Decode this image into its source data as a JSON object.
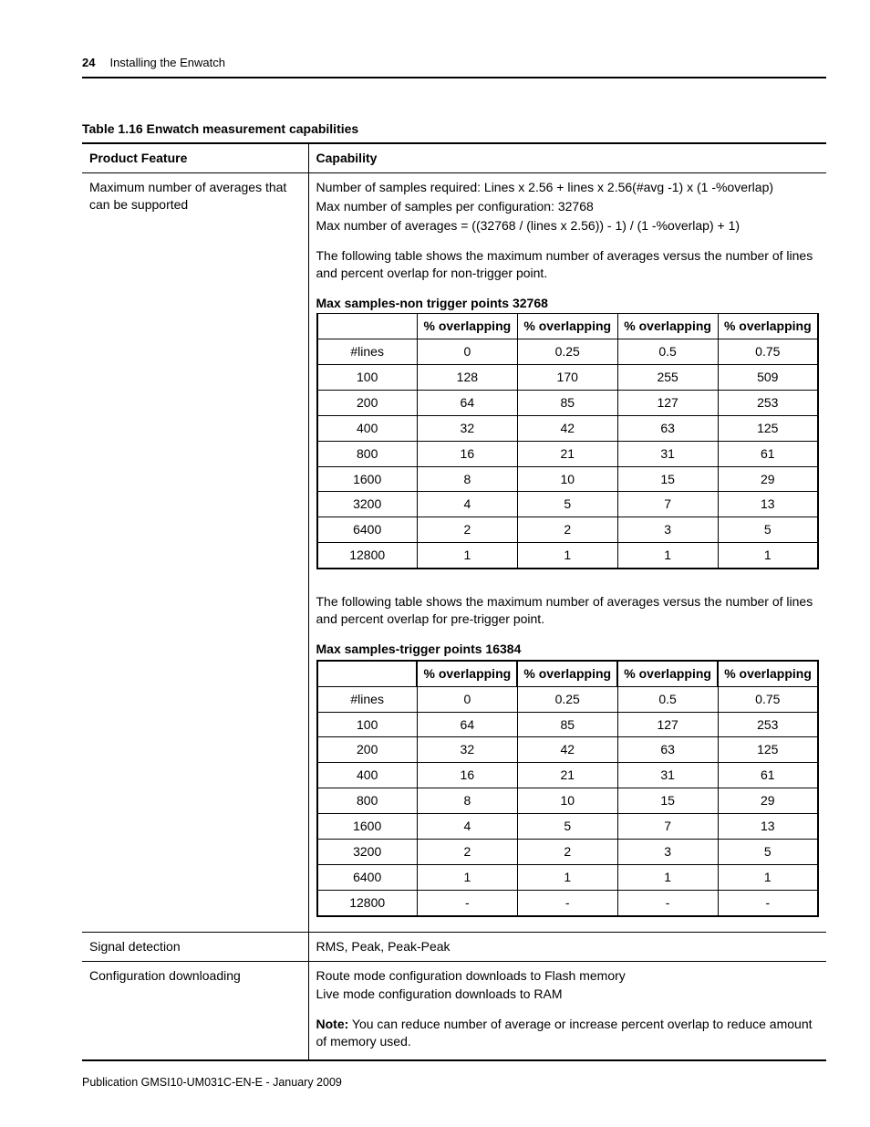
{
  "header": {
    "page_number": "24",
    "chapter": "Installing the Enwatch"
  },
  "table_caption": "Table 1.16 Enwatch measurement capabilities",
  "main_headers": {
    "col1": "Product Feature",
    "col2": "Capability"
  },
  "row1": {
    "feature": "Maximum number of averages that can be supported",
    "line1": "Number of samples required: Lines x 2.56 + lines x 2.56(#avg -1) x (1 -%overlap)",
    "line2": "Max number of samples per configuration: 32768",
    "line3": "Max number of averages = ((32768 / (lines x 2.56)) - 1) / (1 -%overlap) + 1)",
    "desc1": "The following table shows the maximum number of averages versus the number of lines and percent overlap for non-trigger point.",
    "sub1_caption": "Max samples-non trigger points 32768",
    "col_hdr_blank": "",
    "col_hdr": "% overlapping",
    "row_lbl": "#lines",
    "overlap_vals": [
      "0",
      "0.25",
      "0.5",
      "0.75"
    ],
    "sub1_rows": [
      [
        "100",
        "128",
        "170",
        "255",
        "509"
      ],
      [
        "200",
        "64",
        "85",
        "127",
        "253"
      ],
      [
        "400",
        "32",
        "42",
        "63",
        "125"
      ],
      [
        "800",
        "16",
        "21",
        "31",
        "61"
      ],
      [
        "1600",
        "8",
        "10",
        "15",
        "29"
      ],
      [
        "3200",
        "4",
        "5",
        "7",
        "13"
      ],
      [
        "6400",
        "2",
        "2",
        "3",
        "5"
      ],
      [
        "12800",
        "1",
        "1",
        "1",
        "1"
      ]
    ],
    "desc2": "The following table shows the maximum number of averages versus the number of lines and percent overlap for pre-trigger point.",
    "sub2_caption": "Max samples-trigger points  16384",
    "sub2_rows": [
      [
        "100",
        "64",
        "85",
        "127",
        "253"
      ],
      [
        "200",
        "32",
        "42",
        "63",
        "125"
      ],
      [
        "400",
        "16",
        "21",
        "31",
        "61"
      ],
      [
        "800",
        "8",
        "10",
        "15",
        "29"
      ],
      [
        "1600",
        "4",
        "5",
        "7",
        "13"
      ],
      [
        "3200",
        "2",
        "2",
        "3",
        "5"
      ],
      [
        "6400",
        "1",
        "1",
        "1",
        "1"
      ],
      [
        "12800",
        "-",
        "-",
        "-",
        "-"
      ]
    ]
  },
  "row2": {
    "feature": "Signal detection",
    "capability": "RMS, Peak, Peak-Peak"
  },
  "row3": {
    "feature": "Configuration downloading",
    "line1": "Route mode configuration downloads to Flash memory",
    "line2": "Live mode configuration downloads to RAM",
    "note_label": "Note:",
    "note_text": " You can reduce number of average or increase percent overlap to reduce amount of memory used."
  },
  "footer": "Publication GMSI10-UM031C-EN-E - January 2009"
}
